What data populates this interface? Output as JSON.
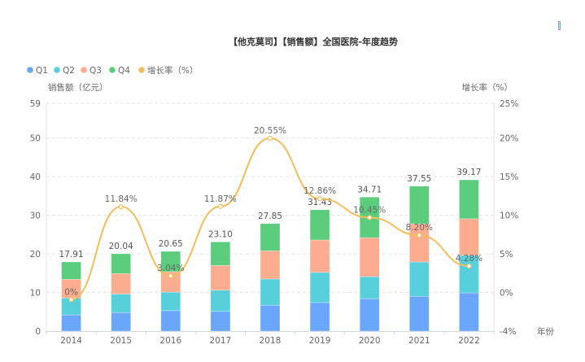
{
  "chart_data": {
    "type": "bar",
    "stacked": true,
    "title": "【他克莫司】【销售额】全国医院-年度趋势",
    "xlabel": "年份",
    "ylabel": "销售额（亿元）",
    "y2label": "增长率（%）",
    "ylim": [
      0,
      59
    ],
    "y2lim": [
      -4,
      25
    ],
    "yticks": [
      "0",
      "10",
      "20",
      "30",
      "40",
      "50",
      "59"
    ],
    "y2ticks": [
      "-4%",
      "0%",
      "5%",
      "10%",
      "15%",
      "20%",
      "25%"
    ],
    "grid": true,
    "legend_position": "top-left",
    "categories": [
      "2014",
      "2015",
      "2016",
      "2017",
      "2018",
      "2019",
      "2020",
      "2021",
      "2022"
    ],
    "series": [
      {
        "name": "Q1",
        "color": "#6aa7fb",
        "values": [
          4.2,
          4.8,
          5.3,
          5.1,
          6.7,
          7.4,
          8.4,
          9.0,
          9.9
        ]
      },
      {
        "name": "Q2",
        "color": "#58d0dc",
        "values": [
          4.4,
          4.8,
          4.8,
          5.5,
          6.8,
          7.8,
          5.7,
          8.9,
          9.7
        ]
      },
      {
        "name": "Q3",
        "color": "#fcac8f",
        "values": [
          4.8,
          5.3,
          5.3,
          6.4,
          7.3,
          8.4,
          10.1,
          9.9,
          9.5
        ]
      },
      {
        "name": "Q4",
        "color": "#5bcd7d",
        "values": [
          4.51,
          5.14,
          5.25,
          6.1,
          7.05,
          7.83,
          10.51,
          9.75,
          10.07
        ]
      }
    ],
    "totals": [
      "17.91",
      "20.04",
      "20.65",
      "23.10",
      "27.85",
      "31.43",
      "34.71",
      "37.55",
      "39.17"
    ],
    "totals_values": [
      17.91,
      20.04,
      20.65,
      23.1,
      27.85,
      31.43,
      34.71,
      37.55,
      39.17
    ],
    "line_series": {
      "name": "增长率（%）",
      "color": "#f3bd5c",
      "axis": "right",
      "values": [
        0,
        11.84,
        3.04,
        11.87,
        20.55,
        12.86,
        10.45,
        8.2,
        4.28
      ],
      "labels": [
        "0%",
        "11.84%",
        "3.04%",
        "11.87%",
        "20.55%",
        "12.86%",
        "10.45%",
        "8.20%",
        "4.28%"
      ]
    }
  }
}
